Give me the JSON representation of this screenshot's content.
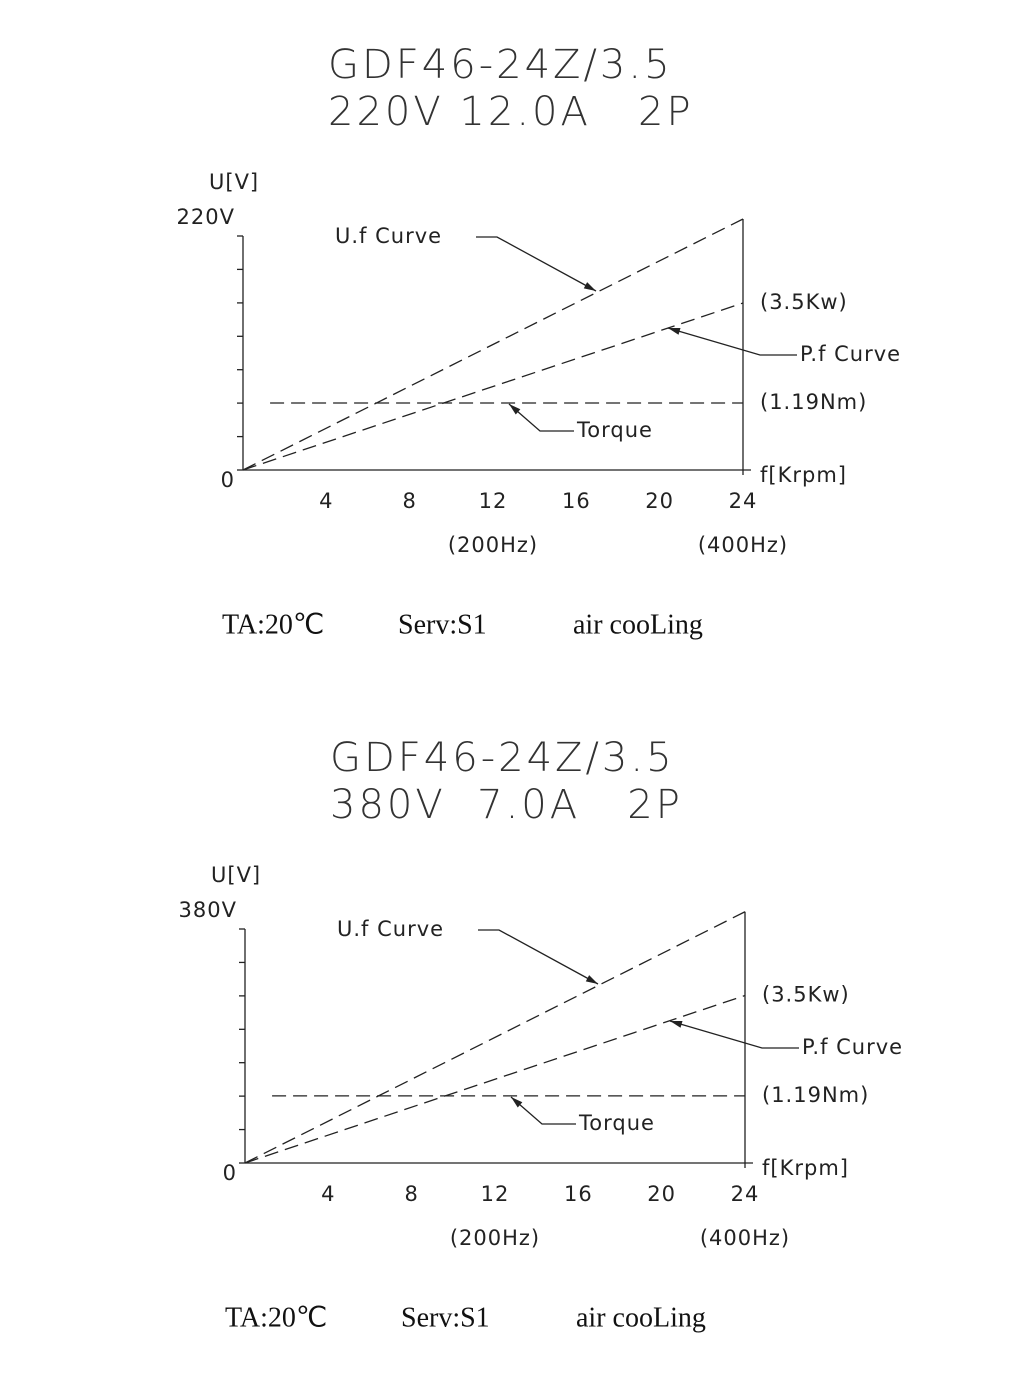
{
  "chart_data": [
    {
      "type": "line",
      "title": [
        "GDF46-24Z/3.5",
        "220V 12.0A   2P"
      ],
      "y_label": "U[V]",
      "x_label": "f[Krpm]",
      "xlim": [
        0,
        24
      ],
      "xticks": [
        4,
        8,
        12,
        16,
        20,
        24
      ],
      "ylim": [
        0,
        220
      ],
      "yticks": [
        0,
        {
          "value": 220,
          "label": "220V"
        }
      ],
      "minor_yticks": [
        31.4,
        62.9,
        94.3,
        125.7,
        157.1,
        188.6
      ],
      "x_annotations": [
        {
          "x": 12,
          "label": "(200Hz)"
        },
        {
          "x": 24,
          "label": "(400Hz)"
        }
      ],
      "grid": false,
      "dashed": true,
      "series": [
        {
          "name": "U.f Curve",
          "color": "#000000",
          "x": [
            0,
            24
          ],
          "values": [
            0,
            236
          ]
        },
        {
          "name": "P.f Curve",
          "color": "#000000",
          "x": [
            0,
            24
          ],
          "values": [
            0,
            157
          ],
          "end_label": "(3.5Kw)"
        },
        {
          "name": "Torque",
          "color": "#000000",
          "x": [
            1.3,
            24
          ],
          "values": [
            63,
            63
          ],
          "end_label": "(1.19Nm)"
        }
      ],
      "notes": [
        "TA:20℃",
        "Serv:S1",
        "air cooLing"
      ]
    },
    {
      "type": "line",
      "title": [
        "GDF46-24Z/3.5",
        "380V  7.0A   2P"
      ],
      "y_label": "U[V]",
      "x_label": "f[Krpm]",
      "xlim": [
        0,
        24
      ],
      "xticks": [
        4,
        8,
        12,
        16,
        20,
        24
      ],
      "ylim": [
        0,
        380
      ],
      "yticks": [
        0,
        {
          "value": 380,
          "label": "380V"
        }
      ],
      "minor_yticks": [
        54.3,
        108.6,
        162.9,
        217.1,
        271.4,
        325.7
      ],
      "x_annotations": [
        {
          "x": 12,
          "label": "(200Hz)"
        },
        {
          "x": 24,
          "label": "(400Hz)"
        }
      ],
      "grid": false,
      "dashed": true,
      "series": [
        {
          "name": "U.f Curve",
          "color": "#000000",
          "x": [
            0,
            24
          ],
          "values": [
            0,
            408
          ]
        },
        {
          "name": "P.f Curve",
          "color": "#000000",
          "x": [
            0,
            24
          ],
          "values": [
            0,
            272
          ],
          "end_label": "(3.5Kw)"
        },
        {
          "name": "Torque",
          "color": "#000000",
          "x": [
            1.3,
            24
          ],
          "values": [
            109,
            109
          ],
          "end_label": "(1.19Nm)"
        }
      ],
      "notes": [
        "TA:20℃",
        "Serv:S1",
        "air cooLing"
      ]
    }
  ]
}
